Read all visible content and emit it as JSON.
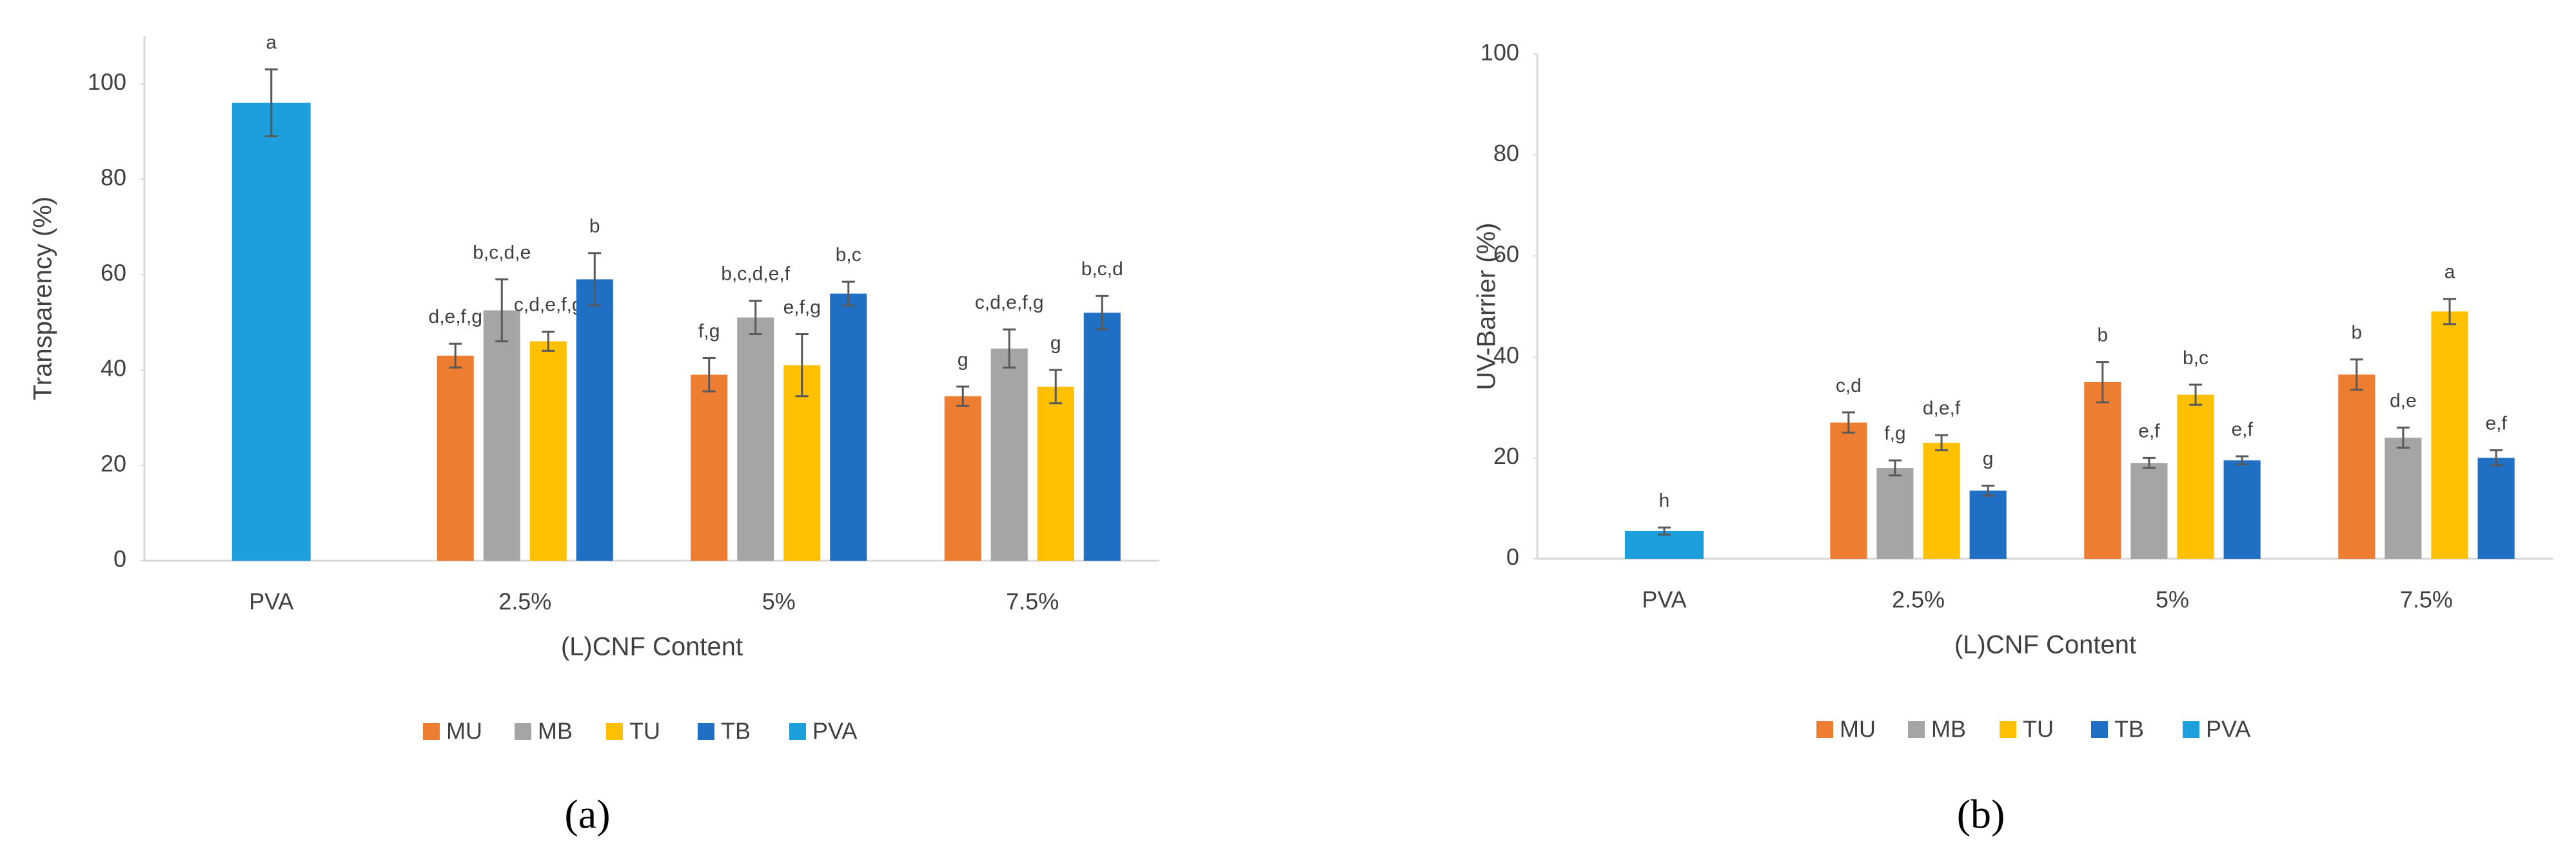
{
  "chart_data": [
    {
      "type": "bar",
      "panel_label": "(a)",
      "x_label": "(L)CNF Content",
      "y_label": "Transparency (%)",
      "categories": [
        "PVA",
        "2.5%",
        "5%",
        "7.5%"
      ],
      "ylim": [
        0,
        110
      ],
      "yticks": [
        0,
        20,
        40,
        60,
        80,
        100
      ],
      "grid": false,
      "series": [
        {
          "name": "MU",
          "color": "#ed7d31",
          "values": [
            null,
            43,
            39,
            34.5
          ],
          "errors": [
            null,
            2.5,
            3.5,
            2
          ],
          "labels": [
            null,
            "d,e,f,g",
            "f,g",
            "g"
          ]
        },
        {
          "name": "MB",
          "color": "#a5a5a5",
          "values": [
            null,
            52.5,
            51,
            44.5
          ],
          "errors": [
            null,
            6.5,
            3.5,
            4
          ],
          "labels": [
            null,
            "b,c,d,e",
            "b,c,d,e,f",
            "c,d,e,f,g"
          ]
        },
        {
          "name": "TU",
          "color": "#ffc000",
          "values": [
            null,
            46,
            41,
            36.5
          ],
          "errors": [
            null,
            2,
            6.5,
            3.5
          ],
          "labels": [
            null,
            "c,d,e,f,g",
            "e,f,g",
            "g"
          ]
        },
        {
          "name": "TB",
          "color": "#1f6fc5",
          "values": [
            null,
            59,
            56,
            52
          ],
          "errors": [
            null,
            5.5,
            2.5,
            3.5
          ],
          "labels": [
            null,
            "b",
            "b,c",
            "b,c,d"
          ]
        },
        {
          "name": "PVA",
          "color": "#1c9fdc",
          "values": [
            96,
            null,
            null,
            null
          ],
          "errors": [
            7,
            null,
            null,
            null
          ],
          "labels": [
            "a",
            null,
            null,
            null
          ]
        }
      ]
    },
    {
      "type": "bar",
      "panel_label": "(b)",
      "x_label": "(L)CNF Content",
      "y_label": "UV-Barrier (%)",
      "categories": [
        "PVA",
        "2.5%",
        "5%",
        "7.5%"
      ],
      "ylim": [
        0,
        100
      ],
      "yticks": [
        0,
        20,
        40,
        60,
        80,
        100
      ],
      "grid": false,
      "series": [
        {
          "name": "MU",
          "color": "#ed7d31",
          "values": [
            null,
            27,
            35,
            36.5
          ],
          "errors": [
            null,
            2,
            4,
            3
          ],
          "labels": [
            null,
            "c,d",
            "b",
            "b"
          ]
        },
        {
          "name": "MB",
          "color": "#a5a5a5",
          "values": [
            null,
            18,
            19,
            24
          ],
          "errors": [
            null,
            1.5,
            1,
            2
          ],
          "labels": [
            null,
            "f,g",
            "e,f",
            "d,e"
          ]
        },
        {
          "name": "TU",
          "color": "#ffc000",
          "values": [
            null,
            23,
            32.5,
            49
          ],
          "errors": [
            null,
            1.5,
            2,
            2.5
          ],
          "labels": [
            null,
            "d,e,f",
            "b,c",
            "a"
          ]
        },
        {
          "name": "TB",
          "color": "#1f6fc5",
          "values": [
            null,
            13.5,
            19.5,
            20
          ],
          "errors": [
            null,
            1,
            0.8,
            1.5
          ],
          "labels": [
            null,
            "g",
            "e,f",
            "e,f"
          ]
        },
        {
          "name": "PVA",
          "color": "#1c9fdc",
          "values": [
            5.5,
            null,
            null,
            null
          ],
          "errors": [
            0.7,
            null,
            null,
            null
          ],
          "labels": [
            "h",
            null,
            null,
            null
          ]
        }
      ]
    }
  ]
}
